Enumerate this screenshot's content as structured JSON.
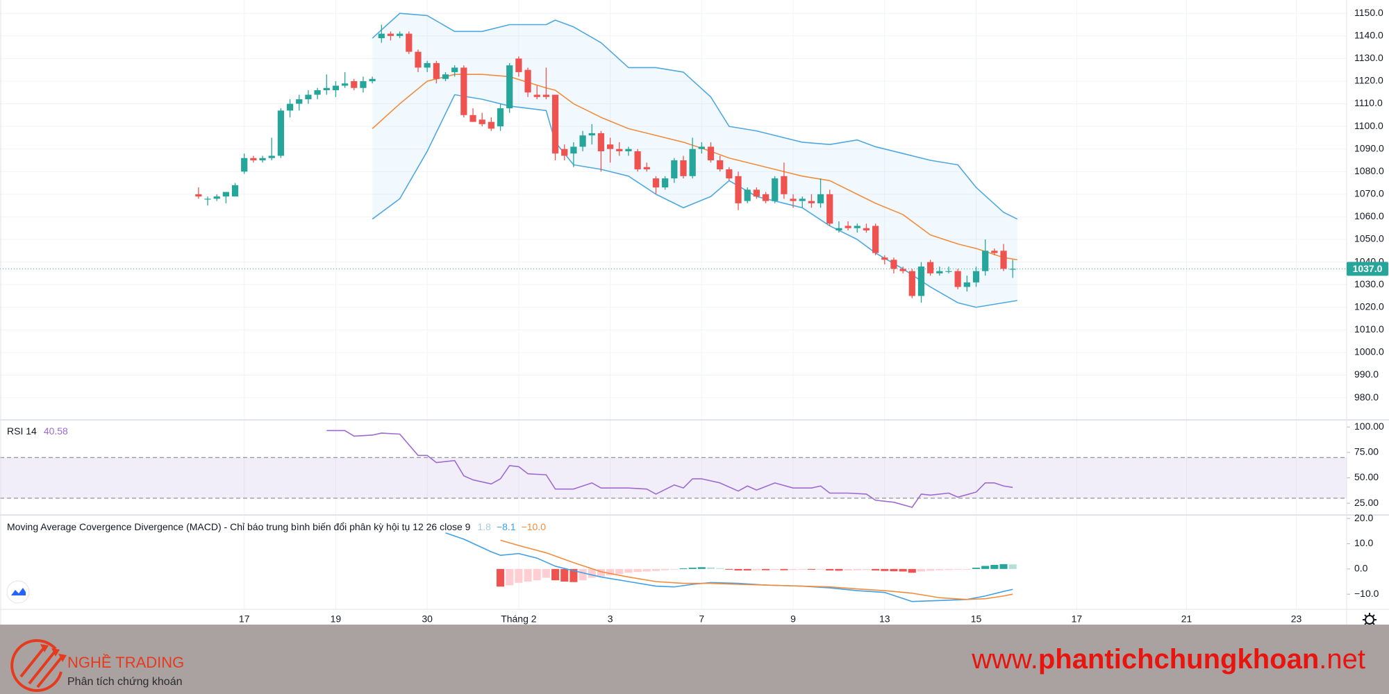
{
  "chart_data": [
    {
      "type": "candlestick",
      "open": [
        1070,
        1068,
        1068,
        1069,
        1069,
        1080,
        1086,
        1085,
        1086,
        1087,
        1107,
        1110,
        1112,
        1114,
        1116,
        1116,
        1118,
        1120,
        1117,
        1120,
        1139,
        1141,
        1140,
        1141,
        1133,
        1126,
        1128,
        1121,
        1124,
        1126,
        1105,
        1103,
        1102,
        1100,
        1108,
        1130,
        1125,
        1114,
        1114,
        1114,
        1090,
        1088,
        1091,
        1096,
        1097,
        1092,
        1090,
        1089,
        1089,
        1082,
        1077,
        1073,
        1077,
        1085,
        1078,
        1090,
        1091,
        1085,
        1081,
        1078,
        1067,
        1072,
        1070,
        1067,
        1078,
        1068,
        1067,
        1067,
        1066,
        1070,
        1054,
        1056,
        1055,
        1055,
        1056,
        1042,
        1041,
        1037,
        1036,
        1025,
        1040,
        1035,
        1036,
        1036,
        1029,
        1031,
        1036,
        1045,
        1045,
        1037
      ],
      "high": [
        1073,
        1069,
        1070,
        1071,
        1075,
        1088,
        1087,
        1087,
        1095,
        1108,
        1112,
        1114,
        1116,
        1117,
        1123,
        1120,
        1124,
        1121,
        1122,
        1122,
        1145,
        1142,
        1142,
        1142,
        1134,
        1129,
        1129,
        1124,
        1127,
        1127,
        1108,
        1106,
        1104,
        1110,
        1128,
        1131,
        1126,
        1118,
        1126,
        1114,
        1092,
        1093,
        1098,
        1101,
        1098,
        1095,
        1093,
        1091,
        1090,
        1084,
        1078,
        1078,
        1086,
        1087,
        1095,
        1093,
        1093,
        1087,
        1082,
        1080,
        1073,
        1073,
        1071,
        1078,
        1084,
        1070,
        1069,
        1070,
        1077,
        1072,
        1058,
        1058,
        1057,
        1057,
        1057,
        1043,
        1042,
        1038,
        1037,
        1040,
        1041,
        1038,
        1038,
        1037,
        1034,
        1038,
        1050,
        1046,
        1048,
        1041
      ],
      "low": [
        1068,
        1065,
        1067,
        1066,
        1069,
        1079,
        1084,
        1084,
        1085,
        1086,
        1104,
        1107,
        1110,
        1112,
        1114,
        1113,
        1117,
        1116,
        1115,
        1119,
        1137,
        1138,
        1139,
        1132,
        1124,
        1124,
        1119,
        1120,
        1122,
        1104,
        1102,
        1100,
        1098,
        1098,
        1106,
        1122,
        1113,
        1112,
        1112,
        1085,
        1085,
        1082,
        1089,
        1092,
        1080,
        1084,
        1087,
        1087,
        1080,
        1080,
        1070,
        1072,
        1075,
        1077,
        1077,
        1088,
        1084,
        1080,
        1076,
        1063,
        1066,
        1068,
        1066,
        1066,
        1068,
        1064,
        1064,
        1064,
        1064,
        1056,
        1053,
        1054,
        1053,
        1053,
        1043,
        1039,
        1035,
        1035,
        1024,
        1022,
        1034,
        1034,
        1035,
        1028,
        1027,
        1029,
        1034,
        1043,
        1036,
        1033
      ],
      "close": [
        1069,
        1068,
        1069,
        1071,
        1074,
        1086,
        1085,
        1086,
        1087,
        1107,
        1110,
        1112,
        1114,
        1116,
        1117,
        1118,
        1119,
        1117,
        1120,
        1121,
        1141,
        1140,
        1141,
        1133,
        1126,
        1128,
        1121,
        1123,
        1126,
        1105,
        1102,
        1101,
        1099,
        1108,
        1127,
        1124,
        1115,
        1113,
        1113,
        1088,
        1087,
        1091,
        1096,
        1097,
        1089,
        1090,
        1089,
        1090,
        1081,
        1081,
        1073,
        1077,
        1085,
        1078,
        1090,
        1091,
        1085,
        1081,
        1077,
        1066,
        1072,
        1069,
        1067,
        1077,
        1070,
        1067,
        1068,
        1066,
        1070,
        1057,
        1055,
        1055,
        1056,
        1054,
        1044,
        1041,
        1037,
        1036,
        1025,
        1038,
        1035,
        1036,
        1036,
        1029,
        1031,
        1036,
        1045,
        1044,
        1037,
        1037
      ],
      "up_color": "#26a69a",
      "down_color": "#ef5350",
      "xlim": [
        -21.7,
        125.5
      ],
      "xticks": [
        {
          "value": 5,
          "label": "17"
        },
        {
          "value": 15,
          "label": "19"
        },
        {
          "value": 25,
          "label": "30"
        },
        {
          "value": 35,
          "label": "Tháng 2"
        },
        {
          "value": 45,
          "label": "3"
        },
        {
          "value": 55,
          "label": "7"
        },
        {
          "value": 65,
          "label": "9"
        },
        {
          "value": 75,
          "label": "13"
        },
        {
          "value": 85,
          "label": "15"
        },
        {
          "value": 96,
          "label": "17"
        },
        {
          "value": 108,
          "label": "21"
        },
        {
          "value": 120,
          "label": "23"
        }
      ],
      "ylim": [
        970.2,
        1155.9
      ],
      "yticks": [
        {
          "value": 980,
          "label": "980.0"
        },
        {
          "value": 990,
          "label": "990.0"
        },
        {
          "value": 1000,
          "label": "1000.0"
        },
        {
          "value": 1010,
          "label": "1010.0"
        },
        {
          "value": 1020,
          "label": "1020.0"
        },
        {
          "value": 1030,
          "label": "1030.0"
        },
        {
          "value": 1040,
          "label": "1040.0"
        },
        {
          "value": 1050,
          "label": "1050.0"
        },
        {
          "value": 1060,
          "label": "1060.0"
        },
        {
          "value": 1070,
          "label": "1070.0"
        },
        {
          "value": 1080,
          "label": "1080.0"
        },
        {
          "value": 1090,
          "label": "1090.0"
        },
        {
          "value": 1100,
          "label": "1100.0"
        },
        {
          "value": 1110,
          "label": "1110.0"
        },
        {
          "value": 1120,
          "label": "1120.0"
        },
        {
          "value": 1130,
          "label": "1130.0"
        },
        {
          "value": 1140,
          "label": "1140.0"
        },
        {
          "value": 1150,
          "label": "1150.0"
        }
      ],
      "grid": true,
      "bollinger": {
        "x": [
          19,
          22,
          25,
          28,
          31,
          34,
          38,
          39,
          41,
          44,
          47,
          50,
          53,
          56,
          58,
          61,
          66,
          69,
          72,
          74,
          77,
          80,
          83,
          85,
          88,
          89.5
        ],
        "upper": [
          1139,
          1150,
          1149,
          1142,
          1142,
          1145,
          1145,
          1147,
          1144,
          1137,
          1126,
          1126,
          1124,
          1113,
          1100,
          1098,
          1093,
          1092,
          1094,
          1091,
          1088,
          1085,
          1083,
          1073,
          1062,
          1059
        ],
        "middle": [
          1099,
          1110,
          1120,
          1123,
          1123,
          1122,
          1117,
          1116,
          1110,
          1104,
          1099,
          1096,
          1093,
          1089,
          1086,
          1083,
          1078,
          1076,
          1070,
          1066,
          1061,
          1052,
          1048,
          1046,
          1042,
          1041
        ],
        "lower": [
          1059,
          1068,
          1089,
          1114,
          1112,
          1109,
          1107,
          1093,
          1083,
          1081,
          1078,
          1070,
          1064,
          1069,
          1076,
          1069,
          1064,
          1056,
          1050,
          1044,
          1037,
          1029,
          1022,
          1020,
          1022,
          1023
        ],
        "band_color": "#4ea8de",
        "middle_color": "#f28c3c",
        "fill": "rgba(33,150,243,0.06)"
      },
      "last_price": {
        "value": 1037,
        "label": "1037.0",
        "color": "#26a69a"
      }
    },
    {
      "type": "line",
      "title": "RSI 14",
      "color": "#9c6ad0",
      "x": [
        14,
        16,
        17,
        19,
        20,
        22,
        24,
        25,
        26,
        28,
        29,
        30,
        32,
        33,
        34,
        35,
        36,
        38,
        39,
        41,
        43,
        44,
        47,
        49,
        50,
        52,
        53,
        54,
        55,
        57,
        59,
        60,
        61,
        63,
        65,
        67,
        68,
        69,
        71,
        73,
        74,
        76,
        78,
        79,
        80,
        82,
        83,
        85,
        86,
        87,
        88,
        89
      ],
      "values": [
        96.5,
        96.5,
        91,
        92,
        94,
        93,
        72,
        72,
        65,
        67,
        52,
        48,
        44,
        49,
        62,
        61,
        54,
        53,
        39,
        39,
        45,
        40,
        40,
        39,
        34,
        43,
        40,
        49,
        49,
        45,
        37,
        42,
        38,
        45,
        40,
        40,
        42,
        35,
        35,
        34,
        28,
        26,
        21,
        34,
        33,
        35,
        31,
        36,
        45,
        45,
        42,
        40.58
      ],
      "ylim": [
        13.5,
        107
      ],
      "yticks": [
        {
          "value": 100,
          "label": "100.00"
        },
        {
          "value": 75,
          "label": "75.00"
        },
        {
          "value": 50,
          "label": "50.00"
        },
        {
          "value": 25,
          "label": "25.00"
        }
      ],
      "band": [
        30,
        70
      ],
      "band_fill": "rgba(126,87,194,0.1)",
      "grid": true
    },
    {
      "type": "macd",
      "title": "Moving Average Covergence Divergence (MACD) - Chỉ báo trung bình biến đổi phân kỳ hội tụ 12 26 close 9",
      "histogram": {
        "x": [
          33,
          34,
          35,
          36,
          37,
          38,
          39,
          40,
          41,
          42,
          43,
          44,
          45,
          46,
          47,
          48,
          49,
          50,
          51,
          52,
          53,
          54,
          55,
          56,
          57,
          58,
          59,
          60,
          61,
          62,
          63,
          64,
          65,
          66,
          67,
          68,
          69,
          70,
          71,
          72,
          73,
          74,
          75,
          76,
          77,
          78,
          79,
          80,
          81,
          82,
          83,
          84,
          85,
          86,
          87,
          88,
          89
        ],
        "values": [
          -7,
          -6.5,
          -5.5,
          -5,
          -4.5,
          -3.5,
          -4.5,
          -5,
          -5.2,
          -4.5,
          -3.5,
          -3,
          -2.5,
          -2,
          -1.5,
          -1.2,
          -1,
          -0.8,
          -0.5,
          -0.2,
          0.2,
          0.5,
          0.7,
          0.6,
          0.3,
          -0.3,
          -0.6,
          -0.6,
          -0.5,
          -0.5,
          -0.4,
          -0.5,
          -0.4,
          -0.3,
          -0.3,
          -0.2,
          -0.6,
          -0.7,
          -0.6,
          -0.5,
          -0.4,
          -0.6,
          -0.8,
          -0.9,
          -1.0,
          -1.5,
          -1.0,
          -0.7,
          -0.5,
          -0.4,
          -0.3,
          -0.2,
          0.5,
          1.2,
          1.6,
          1.9,
          1.8
        ],
        "colors": [
          "#26a69a",
          "#b2dfdb",
          "#ef5350",
          "#ffcdd2"
        ],
        "legend_color": "#a8cbe0"
      },
      "macd": {
        "x": [
          27,
          29,
          32,
          33,
          35,
          37,
          39,
          41,
          44,
          47,
          50,
          52,
          54,
          56,
          59,
          62,
          66,
          69,
          72,
          75,
          78,
          81,
          84,
          86,
          88,
          89
        ],
        "values": [
          14.3,
          11.8,
          6.8,
          5.4,
          6.1,
          4.3,
          1.1,
          -0.7,
          -3.2,
          -5,
          -6.8,
          -7.1,
          -6.1,
          -5.4,
          -5.7,
          -6.4,
          -6.8,
          -7.5,
          -8.6,
          -9.3,
          -12.9,
          -12.5,
          -12.1,
          -10.7,
          -8.9,
          -8.1
        ],
        "last_label": "−8.1",
        "color": "#3fa0e6"
      },
      "signal": {
        "x": [
          33,
          35,
          38,
          41,
          44,
          47,
          50,
          53,
          56,
          59,
          62,
          66,
          69,
          72,
          75,
          78,
          81,
          84,
          86,
          88,
          89
        ],
        "values": [
          11.4,
          9.3,
          6.4,
          2.5,
          -1.1,
          -3.2,
          -5,
          -5.7,
          -5.7,
          -6.1,
          -6.4,
          -6.8,
          -7.1,
          -7.9,
          -8.6,
          -9.6,
          -11.4,
          -12.1,
          -11.8,
          -10.7,
          -10.0
        ],
        "last_label": "−10.0",
        "color": "#f28c3c"
      },
      "ylim": [
        -16,
        21.4
      ],
      "yticks": [
        {
          "value": 20,
          "label": "20.0"
        },
        {
          "value": 10,
          "label": "10.0"
        },
        {
          "value": 0,
          "label": "0.0"
        },
        {
          "value": -10,
          "label": "−10.0"
        }
      ],
      "grid": true
    }
  ],
  "footer": {
    "brand": "NGHỀ TRADING",
    "tagline": "Phân tích chứng khoán",
    "url_prefix": "www.",
    "url_name": "phantichchungkhoan",
    "url_suffix": ".net"
  }
}
